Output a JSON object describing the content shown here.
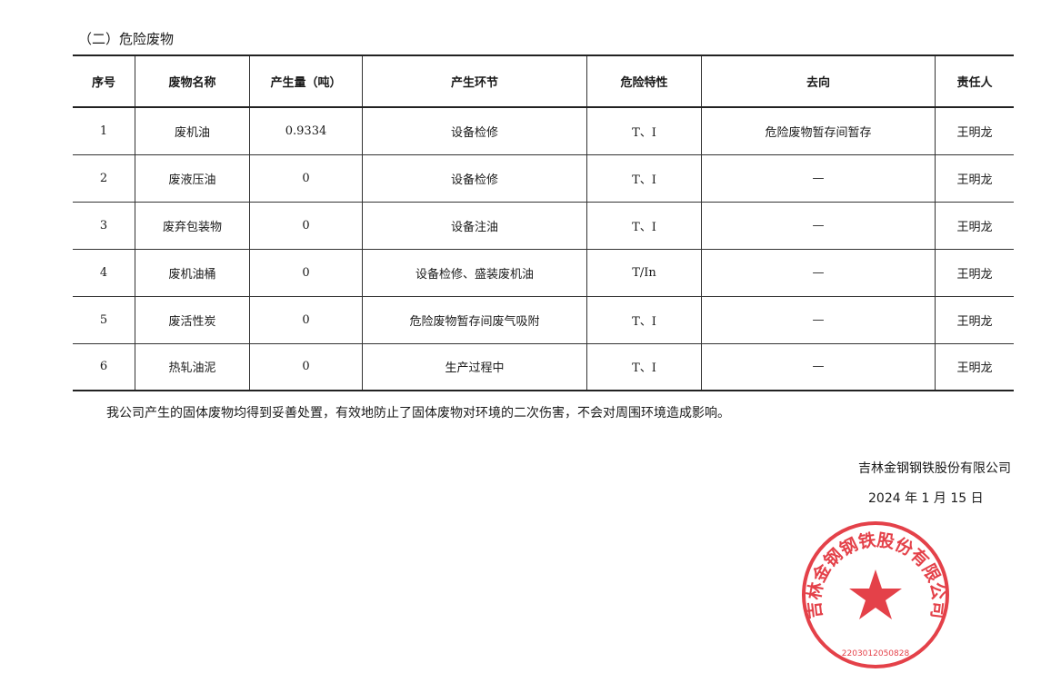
{
  "title": "（二）危险废物",
  "table": {
    "headers": [
      "序号",
      "废物名称",
      "产生量（吨）",
      "产生环节",
      "危险特性",
      "去向",
      "责任人"
    ],
    "rows": [
      [
        "1",
        "废机油",
        "0.9334",
        "设备检修",
        "T、I",
        "危险废物暂存间暂存",
        "王明龙"
      ],
      [
        "2",
        "废液压油",
        "0",
        "设备检修",
        "T、I",
        "—",
        "王明龙"
      ],
      [
        "3",
        "废弃包装物",
        "0",
        "设备注油",
        "T、I",
        "—",
        "王明龙"
      ],
      [
        "4",
        "废机油桶",
        "0",
        "设备检修、盛装废机油",
        "T/In",
        "—",
        "王明龙"
      ],
      [
        "5",
        "废活性炭",
        "0",
        "危险废物暂存间废气吸附",
        "T、I",
        "—",
        "王明龙"
      ],
      [
        "6",
        "热轧油泥",
        "0",
        "生产过程中",
        "T、I",
        "—",
        "王明龙"
      ]
    ]
  },
  "note": "我公司产生的固体废物均得到妥善处置，有效地防止了固体废物对环境的二次伤害，不会对周围环境造成影响。",
  "company": "吉林金钢钢铁股份有限公司",
  "date": "2024 年 1 月 15 日",
  "seal": {
    "text": "吉林金钢钢铁股份有限公司",
    "code": "2203012050828",
    "color": "#e0202a"
  }
}
